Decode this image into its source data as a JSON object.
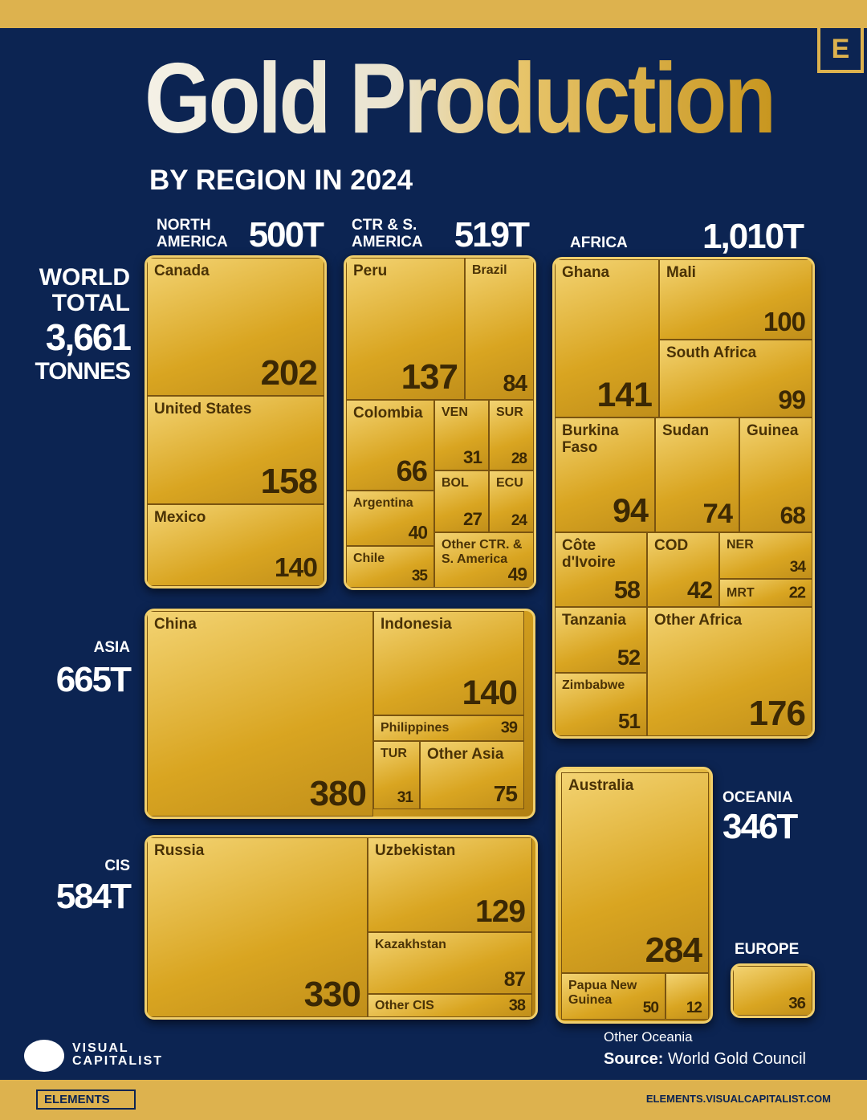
{
  "chart_data": {
    "type": "treemap",
    "title": "Gold Production",
    "subtitle": "BY REGION IN 2024",
    "color": "#d9a521",
    "world_total": {
      "label": "WORLD TOTAL",
      "value": 3661,
      "value_label": "3,661",
      "unit": "TONNES"
    },
    "regions": [
      {
        "name": "NORTH AMERICA",
        "total": 500,
        "total_label": "500T",
        "categories": [
          "Canada",
          "United States",
          "Mexico"
        ],
        "values": [
          202,
          158,
          140
        ]
      },
      {
        "name": "CTR & S. AMERICA",
        "total": 519,
        "total_label": "519T",
        "categories": [
          "Peru",
          "Brazil",
          "Colombia",
          "VEN",
          "SUR",
          "BOL",
          "ECU",
          "Argentina",
          "Chile",
          "Other CTR. & S. America"
        ],
        "values": [
          137,
          84,
          66,
          31,
          28,
          27,
          24,
          40,
          35,
          49
        ]
      },
      {
        "name": "AFRICA",
        "total": 1010,
        "total_label": "1,010T",
        "categories": [
          "Ghana",
          "Mali",
          "South Africa",
          "Burkina Faso",
          "Sudan",
          "Guinea",
          "Côte d'Ivoire",
          "COD",
          "NER",
          "MRT",
          "Tanzania",
          "Zimbabwe",
          "Other Africa"
        ],
        "values": [
          141,
          100,
          99,
          94,
          74,
          68,
          58,
          42,
          34,
          22,
          52,
          51,
          176
        ]
      },
      {
        "name": "ASIA",
        "total": 665,
        "total_label": "665T",
        "categories": [
          "China",
          "Indonesia",
          "Philippines",
          "TUR",
          "Other Asia"
        ],
        "values": [
          380,
          140,
          39,
          31,
          75
        ]
      },
      {
        "name": "CIS",
        "total": 584,
        "total_label": "584T",
        "categories": [
          "Russia",
          "Uzbekistan",
          "Kazakhstan",
          "Other CIS"
        ],
        "values": [
          330,
          129,
          87,
          38
        ]
      },
      {
        "name": "OCEANIA",
        "total": 346,
        "total_label": "346T",
        "categories": [
          "Australia",
          "Papua New Guinea",
          "Other Oceania"
        ],
        "values": [
          284,
          50,
          12
        ]
      },
      {
        "name": "EUROPE",
        "categories": [
          null
        ],
        "values": [
          36
        ]
      }
    ],
    "source_label": "Source:",
    "source": "World Gold Council",
    "brand": "VISUAL CAPITALIST",
    "logo": "E",
    "footer_left": "ELEMENTS",
    "footer_right": "ELEMENTS.VISUALCAPITALIST.COM"
  }
}
